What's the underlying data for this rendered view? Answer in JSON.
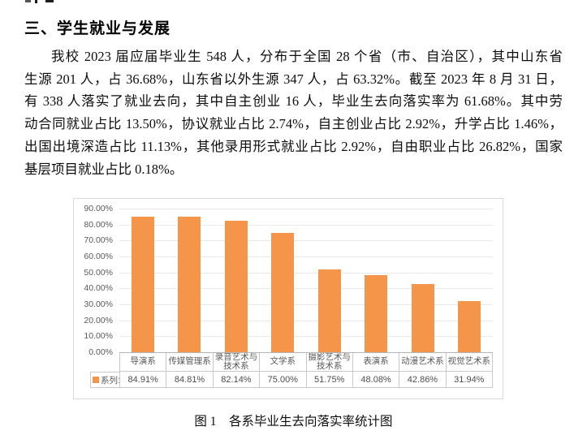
{
  "page": {
    "heading": "三、学生就业与发展",
    "paragraph_lines": [
      "我校 2023 届应届毕业生 548 人，分布于全国 28 个省（市、自治区），其中山东省",
      "生源 201 人，占 36.68%，山东省以外生源 347 人，占 63.32%。截至 2023 年 8 月 31 日，",
      "有 338 人落实了就业去向，其中自主创业 16 人，毕业生去向落实率为 61.68%。其中劳",
      "动合同就业占比 13.50%，协议就业占比 2.74%，自主创业占比 2.92%，升学占比 1.46%，",
      "出国出境深造占比 11.13%，其他录用形式就业占比 2.92%，自由职业占比 26.82%，国家",
      "基层项目就业占比 0.18%。"
    ],
    "caption": "图 1　各系毕业生去向落实率统计图"
  },
  "chart_data": {
    "type": "bar",
    "title": "各系毕业生去向落实率统计图",
    "categories": [
      "导演系",
      "传媒管理系",
      "录音艺术与技术系",
      "文学系",
      "摄影艺术与技术系",
      "表演系",
      "动漫艺术系",
      "视觉艺术系"
    ],
    "series": [
      {
        "name": "系列1",
        "values": [
          84.91,
          84.81,
          82.14,
          75.0,
          51.75,
          48.08,
          42.86,
          31.94
        ]
      }
    ],
    "xlabel": "",
    "ylabel": "",
    "ylim": [
      0,
      90
    ],
    "y_tick_labels": [
      "90.00%",
      "80.00%",
      "70.00%",
      "60.00%",
      "50.00%",
      "40.00%",
      "30.00%",
      "20.00%",
      "10.00%",
      "0.00%"
    ],
    "grid": true,
    "legend_position": "bottom-left-table",
    "bar_color": "#F5954A",
    "value_format": "0.00%"
  }
}
